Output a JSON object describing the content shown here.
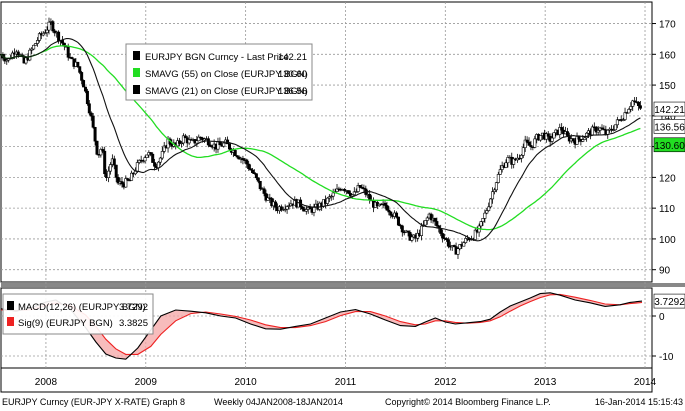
{
  "chart_data": [
    {
      "type": "candlestick",
      "panel": "price",
      "y_ticks": [
        "170",
        "160",
        "150",
        "140",
        "130",
        "120",
        "110",
        "100",
        "90"
      ],
      "y_tick_values": [
        170,
        160,
        150,
        140,
        130,
        120,
        110,
        100,
        90
      ],
      "ylim": [
        86,
        177
      ],
      "xlim": [
        2007.55,
        2014.07
      ],
      "x_tick_labels": [
        "2008",
        "2009",
        "2010",
        "2011",
        "2012",
        "2013",
        "2014"
      ],
      "x_tick_values": [
        2008,
        2009,
        2010,
        2011,
        2012,
        2013,
        2014
      ],
      "legend": {
        "position": "top-center",
        "entries": [
          {
            "label": "EURJPY BGN Curncy - Last Price",
            "value": "142.21",
            "color": "#000000"
          },
          {
            "label": "SMAVG (55) on Close (EURJPY BGN)",
            "value": "130.60",
            "color": "#22dd22"
          },
          {
            "label": "SMAVG (21) on Close (EURJPY BGN)",
            "value": "136.56",
            "color": "#000000"
          }
        ]
      },
      "last_value_labels": [
        {
          "text": "142.21",
          "value": 142.21,
          "bg": "#ffffff",
          "fg": "#000000"
        },
        {
          "text": "136.56",
          "value": 136.56,
          "bg": "#ffffff",
          "fg": "#000000"
        },
        {
          "text": "130.60",
          "value": 130.6,
          "bg": "#22dd22",
          "fg": "#000000"
        }
      ],
      "price_anchors": [
        [
          2007.55,
          160
        ],
        [
          2007.62,
          158
        ],
        [
          2007.7,
          162
        ],
        [
          2007.78,
          157
        ],
        [
          2007.85,
          161
        ],
        [
          2007.92,
          165
        ],
        [
          2008.0,
          168
        ],
        [
          2008.05,
          170
        ],
        [
          2008.1,
          167
        ],
        [
          2008.18,
          163
        ],
        [
          2008.25,
          158
        ],
        [
          2008.32,
          156
        ],
        [
          2008.38,
          150
        ],
        [
          2008.45,
          140
        ],
        [
          2008.52,
          127
        ],
        [
          2008.56,
          130
        ],
        [
          2008.6,
          119
        ],
        [
          2008.66,
          126
        ],
        [
          2008.72,
          118
        ],
        [
          2008.78,
          118
        ],
        [
          2008.84,
          119
        ],
        [
          2008.9,
          123
        ],
        [
          2008.96,
          126
        ],
        [
          2009.02,
          128
        ],
        [
          2009.1,
          124
        ],
        [
          2009.16,
          127
        ],
        [
          2009.22,
          132
        ],
        [
          2009.3,
          130
        ],
        [
          2009.38,
          133
        ],
        [
          2009.46,
          131
        ],
        [
          2009.54,
          133
        ],
        [
          2009.62,
          132
        ],
        [
          2009.7,
          130
        ],
        [
          2009.8,
          131
        ],
        [
          2009.9,
          128
        ],
        [
          2010.0,
          125
        ],
        [
          2010.08,
          121
        ],
        [
          2010.16,
          116
        ],
        [
          2010.24,
          112
        ],
        [
          2010.32,
          110
        ],
        [
          2010.4,
          111
        ],
        [
          2010.48,
          112
        ],
        [
          2010.56,
          111
        ],
        [
          2010.62,
          109
        ],
        [
          2010.7,
          110
        ],
        [
          2010.8,
          112
        ],
        [
          2010.9,
          115
        ],
        [
          2010.96,
          117
        ],
        [
          2011.02,
          116
        ],
        [
          2011.08,
          114
        ],
        [
          2011.14,
          117
        ],
        [
          2011.2,
          115
        ],
        [
          2011.26,
          112
        ],
        [
          2011.32,
          110
        ],
        [
          2011.4,
          111
        ],
        [
          2011.48,
          108
        ],
        [
          2011.56,
          104
        ],
        [
          2011.62,
          101
        ],
        [
          2011.7,
          100
        ],
        [
          2011.78,
          104
        ],
        [
          2011.84,
          108
        ],
        [
          2011.92,
          104
        ],
        [
          2012.0,
          100
        ],
        [
          2012.06,
          97
        ],
        [
          2012.1,
          96
        ],
        [
          2012.16,
          98
        ],
        [
          2012.22,
          100
        ],
        [
          2012.28,
          101
        ],
        [
          2012.34,
          103
        ],
        [
          2012.42,
          110
        ],
        [
          2012.5,
          118
        ],
        [
          2012.56,
          123
        ],
        [
          2012.62,
          126
        ],
        [
          2012.68,
          125
        ],
        [
          2012.74,
          127
        ],
        [
          2012.8,
          131
        ],
        [
          2012.86,
          130
        ],
        [
          2012.92,
          133
        ],
        [
          2012.98,
          134
        ],
        [
          2013.04,
          132
        ],
        [
          2013.1,
          134
        ],
        [
          2013.16,
          136
        ],
        [
          2013.22,
          133
        ],
        [
          2013.3,
          132
        ],
        [
          2013.38,
          133
        ],
        [
          2013.46,
          135
        ],
        [
          2013.54,
          136
        ],
        [
          2013.62,
          134
        ],
        [
          2013.7,
          137
        ],
        [
          2013.78,
          140
        ],
        [
          2013.84,
          143
        ],
        [
          2013.88,
          145
        ],
        [
          2013.93,
          143
        ],
        [
          2013.97,
          142.21
        ]
      ]
    },
    {
      "type": "line",
      "panel": "macd",
      "y_ticks": [
        "0",
        "-10"
      ],
      "y_tick_values": [
        0,
        -10
      ],
      "ylim": [
        -13,
        7
      ],
      "legend": {
        "position": "top-left",
        "entries": [
          {
            "label": "MACD(12,26) (EURJPY BGN)",
            "value": "3.7292",
            "color": "#000000"
          },
          {
            "label": "Sig(9) (EURJPY BGN)",
            "value": "3.3825",
            "color": "#ee2222"
          }
        ]
      },
      "last_value_labels": [
        {
          "text": "3.7292",
          "value": 3.7292,
          "bg": "#ffffff",
          "fg": "#000000"
        }
      ],
      "series": [
        {
          "name": "MACD(12,26) (EURJPY BGN)",
          "color": "#000000",
          "x": [
            2007.55,
            2007.7,
            2007.85,
            2008.0,
            2008.1,
            2008.25,
            2008.4,
            2008.5,
            2008.6,
            2008.7,
            2008.8,
            2008.92,
            2009.05,
            2009.15,
            2009.3,
            2009.45,
            2009.6,
            2009.75,
            2009.9,
            2010.05,
            2010.2,
            2010.35,
            2010.5,
            2010.65,
            2010.8,
            2010.95,
            2011.1,
            2011.25,
            2011.4,
            2011.55,
            2011.7,
            2011.8,
            2011.9,
            2012.0,
            2012.1,
            2012.22,
            2012.35,
            2012.45,
            2012.55,
            2012.65,
            2012.75,
            2012.85,
            2012.95,
            2013.05,
            2013.15,
            2013.3,
            2013.45,
            2013.6,
            2013.75,
            2013.85,
            2013.97
          ],
          "values": [
            1.8,
            1.2,
            2.0,
            3.5,
            4.0,
            1.5,
            -3.0,
            -6.5,
            -9.5,
            -10.5,
            -10.8,
            -8.0,
            -3.5,
            0.0,
            1.5,
            1.2,
            0.8,
            0.0,
            -0.5,
            -2.0,
            -3.2,
            -3.3,
            -2.6,
            -2.0,
            -0.5,
            1.0,
            1.6,
            0.5,
            -1.0,
            -2.4,
            -2.6,
            -1.5,
            -0.5,
            -1.5,
            -2.0,
            -1.7,
            -1.4,
            -0.8,
            1.0,
            2.5,
            3.5,
            4.5,
            5.6,
            5.8,
            5.2,
            4.0,
            3.3,
            2.4,
            2.8,
            3.4,
            3.73
          ]
        },
        {
          "name": "Sig(9) (EURJPY BGN)",
          "color": "#ee2222",
          "x": [
            2007.55,
            2007.7,
            2007.85,
            2008.0,
            2008.1,
            2008.25,
            2008.4,
            2008.5,
            2008.6,
            2008.7,
            2008.8,
            2008.92,
            2009.05,
            2009.15,
            2009.3,
            2009.45,
            2009.6,
            2009.75,
            2009.9,
            2010.05,
            2010.2,
            2010.35,
            2010.5,
            2010.65,
            2010.8,
            2010.95,
            2011.1,
            2011.25,
            2011.4,
            2011.55,
            2011.7,
            2011.8,
            2011.9,
            2012.0,
            2012.1,
            2012.22,
            2012.35,
            2012.45,
            2012.55,
            2012.65,
            2012.75,
            2012.85,
            2012.95,
            2013.05,
            2013.15,
            2013.3,
            2013.45,
            2013.6,
            2013.75,
            2013.85,
            2013.97
          ],
          "values": [
            1.5,
            1.4,
            1.6,
            2.6,
            3.2,
            2.6,
            0.2,
            -2.6,
            -5.8,
            -8.2,
            -9.6,
            -9.6,
            -7.6,
            -4.6,
            -1.2,
            0.6,
            1.0,
            0.5,
            -0.1,
            -1.0,
            -2.2,
            -2.9,
            -2.9,
            -2.4,
            -1.4,
            0.1,
            1.1,
            1.1,
            0.0,
            -1.4,
            -2.2,
            -2.0,
            -1.2,
            -1.2,
            -1.6,
            -1.8,
            -1.6,
            -1.2,
            -0.2,
            1.2,
            2.5,
            3.6,
            4.6,
            5.3,
            5.4,
            4.7,
            3.9,
            3.0,
            2.8,
            3.1,
            3.38
          ]
        }
      ]
    }
  ],
  "footer": {
    "left": "EURJPY Curncy (EUR-JPY X-RATE) Graph 8",
    "center": "Weekly 04JAN2008-18JAN2014",
    "copyright": "Copyright© 2014 Bloomberg Finance L.P.",
    "right": "16-Jan-2014 15:15:43"
  }
}
